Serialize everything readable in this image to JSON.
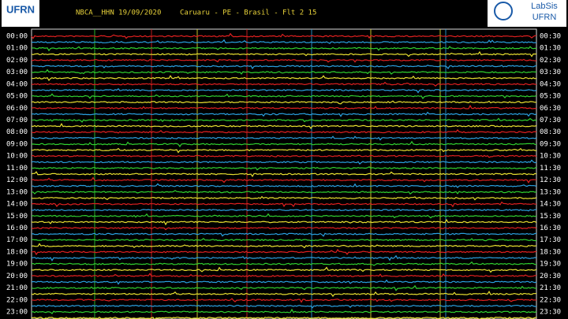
{
  "header": {
    "station": "NBCA__HHN 19/09/2020",
    "location": "Caruaru - PE - Brasil - Flt 2 15"
  },
  "logos": {
    "left": "UFRN",
    "right": [
      "LabSis",
      "UFRN"
    ]
  },
  "time_labels": {
    "left": [
      "00:00",
      "01:00",
      "02:00",
      "03:00",
      "04:00",
      "05:00",
      "06:00",
      "07:00",
      "08:00",
      "09:00",
      "10:00",
      "11:00",
      "12:00",
      "13:00",
      "14:00",
      "15:00",
      "16:00",
      "17:00",
      "18:00",
      "19:00",
      "20:00",
      "21:00",
      "22:00",
      "23:00"
    ],
    "right": [
      "00:30",
      "01:30",
      "02:30",
      "03:30",
      "04:30",
      "05:30",
      "06:30",
      "07:30",
      "08:30",
      "09:30",
      "10:30",
      "11:30",
      "12:30",
      "13:30",
      "14:30",
      "15:30",
      "16:30",
      "17:30",
      "18:30",
      "19:30",
      "20:30",
      "21:30",
      "22:30",
      "23:30"
    ]
  }
}
